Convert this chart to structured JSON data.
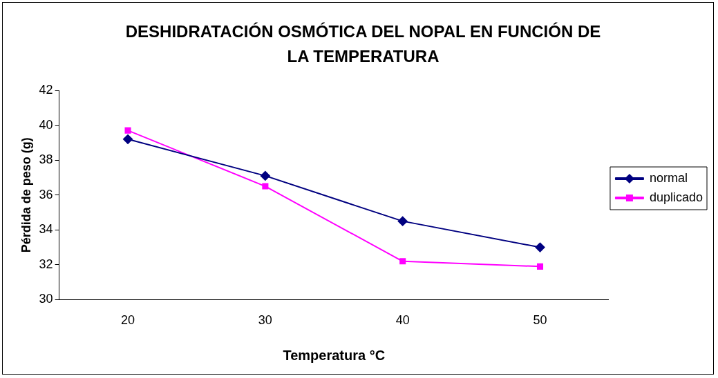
{
  "chart_data": {
    "type": "line",
    "title": "DESHIDRATACIÓN OSMÓTICA DEL NOPAL EN FUNCIÓN DE LA TEMPERATURA",
    "xlabel": "Temperatura °C",
    "ylabel": "Pérdida de peso (g)",
    "categories": [
      "20",
      "30",
      "40",
      "50"
    ],
    "series": [
      {
        "name": "normal",
        "color": "#000080",
        "marker": "diamond",
        "values": [
          39.2,
          37.1,
          34.5,
          33.0
        ]
      },
      {
        "name": "duplicado",
        "color": "#ff00ff",
        "marker": "square",
        "values": [
          39.7,
          36.5,
          32.2,
          31.9
        ]
      }
    ],
    "ylim": [
      30,
      42
    ],
    "yticks": [
      30,
      32,
      34,
      36,
      38,
      40,
      42
    ],
    "grid": false,
    "legend": "right",
    "line_style": "solid"
  }
}
